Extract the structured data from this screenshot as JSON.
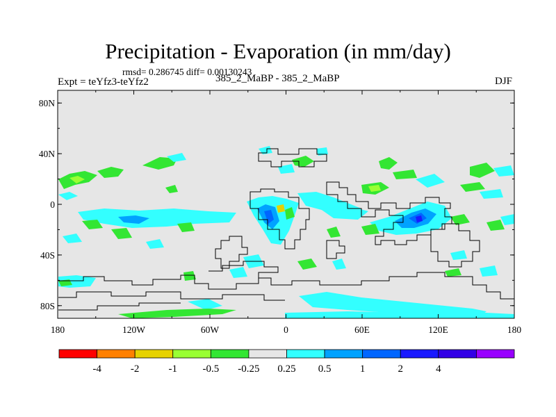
{
  "header": {
    "title": "Precipitation - Evaporation (in mm/day)",
    "stats": "rmsd= 0.286745 diff= 0.00130243",
    "left_label": "Expt = teYfz3-teYfz2",
    "center_label": "385_2_MaBP - 385_2_MaBP",
    "right_label": "DJF"
  },
  "map": {
    "lon_range": [
      -180,
      180
    ],
    "lat_range": [
      -90,
      90
    ],
    "background_color": "#e6e6e6",
    "coast_color": "#000000",
    "y_ticks": [
      {
        "lat": 80,
        "label": "80N"
      },
      {
        "lat": 40,
        "label": "40N"
      },
      {
        "lat": 0,
        "label": "0"
      },
      {
        "lat": -40,
        "label": "40S"
      },
      {
        "lat": -80,
        "label": "80S"
      }
    ],
    "x_ticks": [
      {
        "lon": -180,
        "label": "180"
      },
      {
        "lon": -120,
        "label": "120W"
      },
      {
        "lon": -60,
        "label": "60W"
      },
      {
        "lon": 0,
        "label": "0"
      },
      {
        "lon": 60,
        "label": "60E"
      },
      {
        "lon": 120,
        "label": "120E"
      },
      {
        "lon": 180,
        "label": "180"
      }
    ]
  },
  "colorbar": {
    "colors": [
      "#ff0000",
      "#ff8000",
      "#e6d200",
      "#99ff33",
      "#33e633",
      "#e6e6e6",
      "#33ffff",
      "#00a2ff",
      "#0066ff",
      "#1a1aff",
      "#3300e6",
      "#9900ff"
    ],
    "labels": [
      "-4",
      "-2",
      "-1",
      "-0.5",
      "-0.25",
      "0.25",
      "0.5",
      "1",
      "2",
      "4"
    ]
  }
}
